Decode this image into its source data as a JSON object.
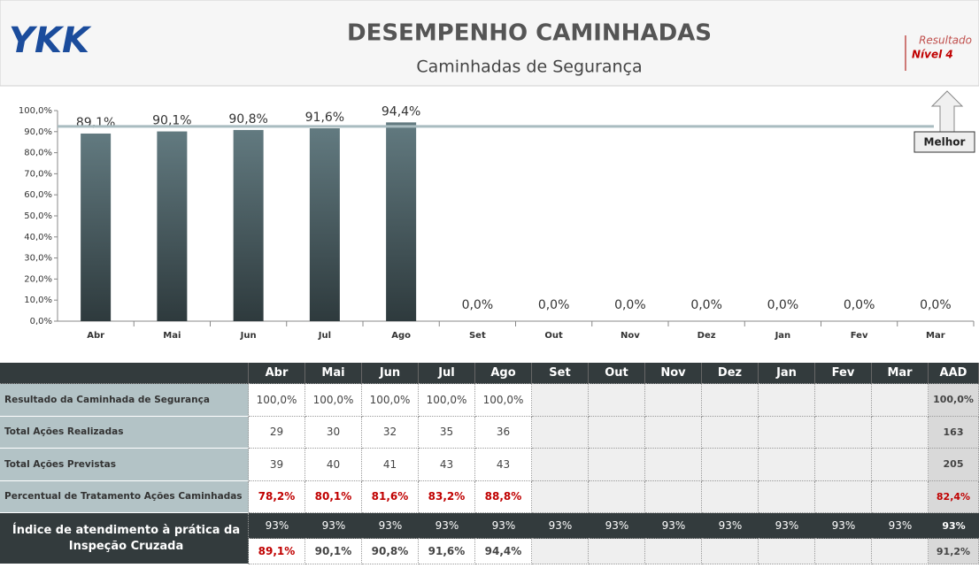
{
  "header": {
    "logo": "YKK",
    "title": "DESEMPENHO CAMINHADAS",
    "subtitle": "Caminhadas de Segurança",
    "result_label": "Resultado",
    "result_level": "Nível 4"
  },
  "chart_data": {
    "type": "bar",
    "categories": [
      "Abr",
      "Mai",
      "Jun",
      "Jul",
      "Ago",
      "Set",
      "Out",
      "Nov",
      "Dez",
      "Jan",
      "Fev",
      "Mar"
    ],
    "values": [
      89.1,
      90.1,
      90.8,
      91.6,
      94.4,
      0,
      0,
      0,
      0,
      0,
      0,
      0
    ],
    "value_labels": [
      "89,1%",
      "90,1%",
      "90,8%",
      "91,6%",
      "94,4%",
      "0,0%",
      "0,0%",
      "0,0%",
      "0,0%",
      "0,0%",
      "0,0%",
      "0,0%"
    ],
    "color": [
      "#627a80",
      "#2e3a3d"
    ],
    "ylim": [
      0,
      100
    ],
    "yticks": [
      {
        "value": 0,
        "label": "0,0%"
      },
      {
        "value": 10,
        "label": "10,0%"
      },
      {
        "value": 20,
        "label": "20,0%"
      },
      {
        "value": 30,
        "label": "30,0%"
      },
      {
        "value": 40,
        "label": "40,0%"
      },
      {
        "value": 50,
        "label": "50,0%"
      },
      {
        "value": 60,
        "label": "60,0%"
      },
      {
        "value": 70,
        "label": "70,0%"
      },
      {
        "value": 80,
        "label": "80,0%"
      },
      {
        "value": 90,
        "label": "90,0%"
      },
      {
        "value": 100,
        "label": "100,0%"
      }
    ],
    "reference_line": 92.5,
    "annotation": "Melhor"
  },
  "table": {
    "columns": [
      "Abr",
      "Mai",
      "Jun",
      "Jul",
      "Ago",
      "Set",
      "Out",
      "Nov",
      "Dez",
      "Jan",
      "Fev",
      "Mar",
      "AAD"
    ],
    "rows": [
      {
        "label": "Resultado da Caminhada de Segurança",
        "lines": [
          [
            "100,0%",
            "100,0%",
            "100,0%",
            "100,0%",
            "100,0%",
            null,
            null,
            null,
            null,
            null,
            null,
            null,
            "100,0%"
          ]
        ]
      },
      {
        "label": "Total Ações Realizadas",
        "lines": [
          [
            "29",
            "30",
            "32",
            "35",
            "36",
            null,
            null,
            null,
            null,
            null,
            null,
            null,
            "163"
          ]
        ]
      },
      {
        "label": "Total Ações Previstas",
        "lines": [
          [
            "39",
            "40",
            "41",
            "43",
            "43",
            null,
            null,
            null,
            null,
            null,
            null,
            null,
            "205"
          ]
        ]
      },
      {
        "label": "Percentual de Tratamento Ações Caminhadas",
        "lines": [
          [
            "78,2%",
            "80,1%",
            "81,6%",
            "83,2%",
            "88,8%",
            null,
            null,
            null,
            null,
            null,
            null,
            null,
            "82,4%"
          ]
        ]
      },
      {
        "label": "Índice de atendimento à prática da Inspeção Cruzada",
        "lines": [
          [
            "93%",
            "93%",
            "93%",
            "93%",
            "93%",
            "93%",
            "93%",
            "93%",
            "93%",
            "93%",
            "93%",
            "93%",
            "93%"
          ],
          [
            "89,1%",
            "90,1%",
            "90,8%",
            "91,6%",
            "94,4%",
            null,
            null,
            null,
            null,
            null,
            null,
            null,
            "91,2%"
          ]
        ]
      }
    ]
  }
}
